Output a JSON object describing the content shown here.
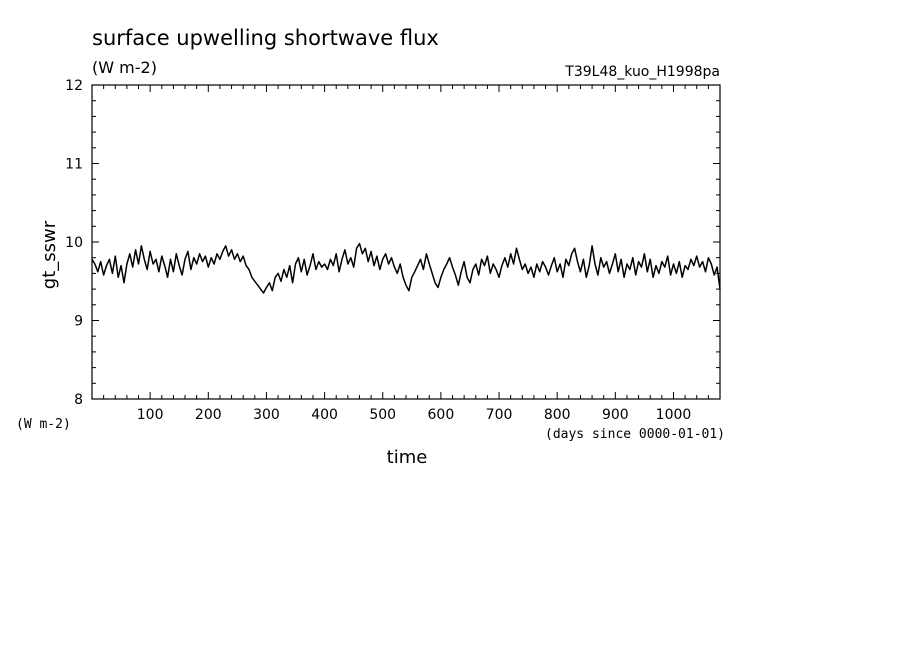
{
  "chart_data": {
    "type": "line",
    "title": "surface upwelling shortwave flux",
    "subtitle": "(W m-2)",
    "run_label": "T39L48_kuo_H1998pa",
    "ylabel": "gt_sswr",
    "y_units_label": "(W m-2)",
    "xlabel": "time",
    "x_units_label": "(days since 0000-01-01)",
    "xlim": [
      0,
      1080
    ],
    "ylim": [
      8,
      12
    ],
    "x_ticks": [
      100,
      200,
      300,
      400,
      500,
      600,
      700,
      800,
      900,
      1000
    ],
    "y_ticks": [
      8,
      9,
      10,
      11,
      12
    ],
    "grid": false,
    "series": [
      {
        "points": [
          [
            0,
            9.78
          ],
          [
            5,
            9.72
          ],
          [
            10,
            9.62
          ],
          [
            15,
            9.75
          ],
          [
            20,
            9.58
          ],
          [
            25,
            9.7
          ],
          [
            30,
            9.78
          ],
          [
            35,
            9.6
          ],
          [
            40,
            9.82
          ],
          [
            45,
            9.55
          ],
          [
            50,
            9.7
          ],
          [
            55,
            9.48
          ],
          [
            60,
            9.72
          ],
          [
            65,
            9.85
          ],
          [
            70,
            9.68
          ],
          [
            75,
            9.9
          ],
          [
            80,
            9.72
          ],
          [
            85,
            9.95
          ],
          [
            90,
            9.78
          ],
          [
            95,
            9.65
          ],
          [
            100,
            9.88
          ],
          [
            105,
            9.72
          ],
          [
            110,
            9.78
          ],
          [
            115,
            9.62
          ],
          [
            120,
            9.82
          ],
          [
            125,
            9.7
          ],
          [
            130,
            9.55
          ],
          [
            135,
            9.78
          ],
          [
            140,
            9.62
          ],
          [
            145,
            9.85
          ],
          [
            150,
            9.7
          ],
          [
            155,
            9.58
          ],
          [
            160,
            9.78
          ],
          [
            165,
            9.88
          ],
          [
            170,
            9.65
          ],
          [
            175,
            9.8
          ],
          [
            180,
            9.72
          ],
          [
            185,
            9.85
          ],
          [
            190,
            9.75
          ],
          [
            195,
            9.82
          ],
          [
            200,
            9.68
          ],
          [
            205,
            9.8
          ],
          [
            210,
            9.72
          ],
          [
            215,
            9.85
          ],
          [
            220,
            9.78
          ],
          [
            225,
            9.88
          ],
          [
            230,
            9.95
          ],
          [
            235,
            9.82
          ],
          [
            240,
            9.9
          ],
          [
            245,
            9.78
          ],
          [
            250,
            9.85
          ],
          [
            255,
            9.75
          ],
          [
            260,
            9.82
          ],
          [
            265,
            9.7
          ],
          [
            270,
            9.65
          ],
          [
            275,
            9.55
          ],
          [
            280,
            9.5
          ],
          [
            285,
            9.45
          ],
          [
            290,
            9.4
          ],
          [
            295,
            9.35
          ],
          [
            300,
            9.42
          ],
          [
            305,
            9.48
          ],
          [
            310,
            9.38
          ],
          [
            315,
            9.55
          ],
          [
            320,
            9.6
          ],
          [
            325,
            9.5
          ],
          [
            330,
            9.65
          ],
          [
            335,
            9.55
          ],
          [
            340,
            9.7
          ],
          [
            345,
            9.48
          ],
          [
            350,
            9.72
          ],
          [
            355,
            9.8
          ],
          [
            360,
            9.62
          ],
          [
            365,
            9.78
          ],
          [
            370,
            9.58
          ],
          [
            375,
            9.7
          ],
          [
            380,
            9.85
          ],
          [
            385,
            9.65
          ],
          [
            390,
            9.75
          ],
          [
            395,
            9.68
          ],
          [
            400,
            9.72
          ],
          [
            405,
            9.65
          ],
          [
            410,
            9.78
          ],
          [
            415,
            9.7
          ],
          [
            420,
            9.85
          ],
          [
            425,
            9.62
          ],
          [
            430,
            9.78
          ],
          [
            435,
            9.9
          ],
          [
            440,
            9.72
          ],
          [
            445,
            9.8
          ],
          [
            450,
            9.68
          ],
          [
            455,
            9.92
          ],
          [
            460,
            9.98
          ],
          [
            465,
            9.85
          ],
          [
            470,
            9.92
          ],
          [
            475,
            9.75
          ],
          [
            480,
            9.88
          ],
          [
            485,
            9.7
          ],
          [
            490,
            9.82
          ],
          [
            495,
            9.65
          ],
          [
            500,
            9.78
          ],
          [
            505,
            9.85
          ],
          [
            510,
            9.72
          ],
          [
            515,
            9.8
          ],
          [
            520,
            9.68
          ],
          [
            525,
            9.6
          ],
          [
            530,
            9.72
          ],
          [
            535,
            9.55
          ],
          [
            540,
            9.45
          ],
          [
            545,
            9.38
          ],
          [
            550,
            9.55
          ],
          [
            555,
            9.62
          ],
          [
            560,
            9.7
          ],
          [
            565,
            9.78
          ],
          [
            570,
            9.65
          ],
          [
            575,
            9.85
          ],
          [
            580,
            9.72
          ],
          [
            585,
            9.6
          ],
          [
            590,
            9.48
          ],
          [
            595,
            9.42
          ],
          [
            600,
            9.55
          ],
          [
            605,
            9.65
          ],
          [
            610,
            9.72
          ],
          [
            615,
            9.8
          ],
          [
            620,
            9.68
          ],
          [
            625,
            9.58
          ],
          [
            630,
            9.45
          ],
          [
            635,
            9.62
          ],
          [
            640,
            9.75
          ],
          [
            645,
            9.55
          ],
          [
            650,
            9.48
          ],
          [
            655,
            9.65
          ],
          [
            660,
            9.72
          ],
          [
            665,
            9.58
          ],
          [
            670,
            9.78
          ],
          [
            675,
            9.7
          ],
          [
            680,
            9.82
          ],
          [
            685,
            9.6
          ],
          [
            690,
            9.72
          ],
          [
            695,
            9.65
          ],
          [
            700,
            9.55
          ],
          [
            705,
            9.7
          ],
          [
            710,
            9.8
          ],
          [
            715,
            9.68
          ],
          [
            720,
            9.85
          ],
          [
            725,
            9.72
          ],
          [
            730,
            9.92
          ],
          [
            735,
            9.78
          ],
          [
            740,
            9.65
          ],
          [
            745,
            9.72
          ],
          [
            750,
            9.6
          ],
          [
            755,
            9.68
          ],
          [
            760,
            9.55
          ],
          [
            765,
            9.72
          ],
          [
            770,
            9.62
          ],
          [
            775,
            9.75
          ],
          [
            780,
            9.68
          ],
          [
            785,
            9.58
          ],
          [
            790,
            9.7
          ],
          [
            795,
            9.8
          ],
          [
            800,
            9.62
          ],
          [
            805,
            9.72
          ],
          [
            810,
            9.55
          ],
          [
            815,
            9.78
          ],
          [
            820,
            9.7
          ],
          [
            825,
            9.85
          ],
          [
            830,
            9.92
          ],
          [
            835,
            9.75
          ],
          [
            840,
            9.62
          ],
          [
            845,
            9.78
          ],
          [
            850,
            9.55
          ],
          [
            855,
            9.7
          ],
          [
            860,
            9.95
          ],
          [
            865,
            9.72
          ],
          [
            870,
            9.58
          ],
          [
            875,
            9.8
          ],
          [
            880,
            9.68
          ],
          [
            885,
            9.75
          ],
          [
            890,
            9.6
          ],
          [
            895,
            9.72
          ],
          [
            900,
            9.85
          ],
          [
            905,
            9.62
          ],
          [
            910,
            9.78
          ],
          [
            915,
            9.55
          ],
          [
            920,
            9.72
          ],
          [
            925,
            9.65
          ],
          [
            930,
            9.8
          ],
          [
            935,
            9.58
          ],
          [
            940,
            9.75
          ],
          [
            945,
            9.68
          ],
          [
            950,
            9.85
          ],
          [
            955,
            9.62
          ],
          [
            960,
            9.78
          ],
          [
            965,
            9.55
          ],
          [
            970,
            9.7
          ],
          [
            975,
            9.6
          ],
          [
            980,
            9.75
          ],
          [
            985,
            9.68
          ],
          [
            990,
            9.82
          ],
          [
            995,
            9.58
          ],
          [
            1000,
            9.72
          ],
          [
            1005,
            9.6
          ],
          [
            1010,
            9.75
          ],
          [
            1015,
            9.55
          ],
          [
            1020,
            9.7
          ],
          [
            1025,
            9.65
          ],
          [
            1030,
            9.78
          ],
          [
            1035,
            9.7
          ],
          [
            1040,
            9.82
          ],
          [
            1045,
            9.68
          ],
          [
            1050,
            9.75
          ],
          [
            1055,
            9.62
          ],
          [
            1060,
            9.8
          ],
          [
            1065,
            9.72
          ],
          [
            1070,
            9.58
          ],
          [
            1075,
            9.68
          ],
          [
            1080,
            9.4
          ]
        ]
      }
    ]
  }
}
